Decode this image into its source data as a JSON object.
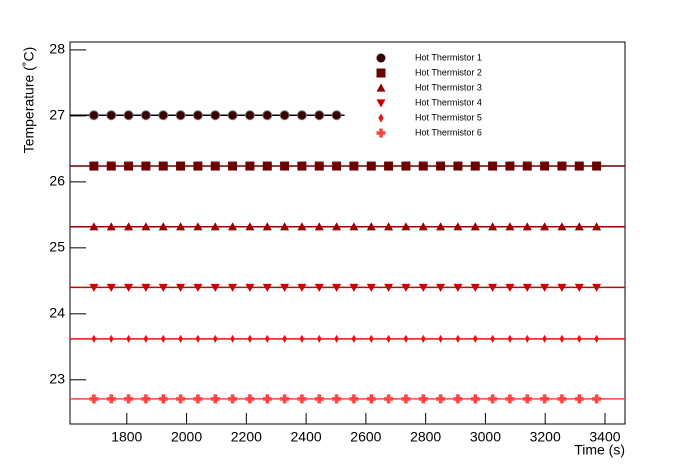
{
  "chart_data": {
    "type": "scatter",
    "x_label": "Time (s)",
    "y_label": "Temperature (˚C)",
    "xlim": [
      1610,
      3467
    ],
    "ylim": [
      22.33,
      28.12
    ],
    "xticks": [
      1800,
      2000,
      2200,
      2400,
      2600,
      2800,
      3000,
      3200,
      3400
    ],
    "yticks": [
      23,
      24,
      25,
      26,
      27,
      28
    ],
    "series": [
      {
        "name": "Hot Thermistor 1",
        "color": "#3a0000",
        "marker": "circle",
        "x": [
          1690,
          1748,
          1806,
          1864,
          1922,
          1980,
          2038,
          2096,
          2154,
          2212,
          2270,
          2328,
          2386,
          2444,
          2502
        ],
        "values": [
          27.01,
          27.01,
          27.01,
          27.01,
          27.01,
          27.01,
          27.01,
          27.01,
          27.01,
          27.01,
          27.01,
          27.01,
          27.01,
          27.01,
          27.01
        ]
      },
      {
        "name": "Hot Thermistor 2",
        "color": "#6b0000",
        "marker": "square",
        "x": [
          1690,
          1748,
          1806,
          1864,
          1922,
          1980,
          2038,
          2096,
          2154,
          2212,
          2270,
          2328,
          2386,
          2444,
          2502,
          2560,
          2618,
          2676,
          2734,
          2792,
          2850,
          2908,
          2966,
          3024,
          3082,
          3140,
          3198,
          3256,
          3314,
          3372
        ],
        "values": [
          26.24,
          26.24,
          26.24,
          26.24,
          26.24,
          26.24,
          26.24,
          26.24,
          26.24,
          26.24,
          26.24,
          26.24,
          26.24,
          26.24,
          26.24,
          26.24,
          26.24,
          26.24,
          26.24,
          26.24,
          26.24,
          26.24,
          26.24,
          26.24,
          26.24,
          26.24,
          26.24,
          26.24,
          26.24,
          26.24
        ]
      },
      {
        "name": "Hot Thermistor 3",
        "color": "#990000",
        "marker": "triangle-up",
        "x": [
          1690,
          1748,
          1806,
          1864,
          1922,
          1980,
          2038,
          2096,
          2154,
          2212,
          2270,
          2328,
          2386,
          2444,
          2502,
          2560,
          2618,
          2676,
          2734,
          2792,
          2850,
          2908,
          2966,
          3024,
          3082,
          3140,
          3198,
          3256,
          3314,
          3372
        ],
        "values": [
          25.32,
          25.32,
          25.32,
          25.32,
          25.32,
          25.32,
          25.32,
          25.32,
          25.32,
          25.32,
          25.32,
          25.32,
          25.32,
          25.32,
          25.32,
          25.32,
          25.32,
          25.32,
          25.32,
          25.32,
          25.32,
          25.32,
          25.32,
          25.32,
          25.32,
          25.32,
          25.32,
          25.32,
          25.32,
          25.32
        ]
      },
      {
        "name": "Hot Thermistor 4",
        "color": "#cc0000",
        "marker": "triangle-down",
        "x": [
          1690,
          1748,
          1806,
          1864,
          1922,
          1980,
          2038,
          2096,
          2154,
          2212,
          2270,
          2328,
          2386,
          2444,
          2502,
          2560,
          2618,
          2676,
          2734,
          2792,
          2850,
          2908,
          2966,
          3024,
          3082,
          3140,
          3198,
          3256,
          3314,
          3372
        ],
        "values": [
          24.4,
          24.4,
          24.4,
          24.4,
          24.4,
          24.4,
          24.4,
          24.4,
          24.4,
          24.4,
          24.4,
          24.4,
          24.4,
          24.4,
          24.4,
          24.4,
          24.4,
          24.4,
          24.4,
          24.4,
          24.4,
          24.4,
          24.4,
          24.4,
          24.4,
          24.4,
          24.4,
          24.4,
          24.4,
          24.4
        ]
      },
      {
        "name": "Hot Thermistor 5",
        "color": "#ee1111",
        "marker": "diamond",
        "x": [
          1690,
          1748,
          1806,
          1864,
          1922,
          1980,
          2038,
          2096,
          2154,
          2212,
          2270,
          2328,
          2386,
          2444,
          2502,
          2560,
          2618,
          2676,
          2734,
          2792,
          2850,
          2908,
          2966,
          3024,
          3082,
          3140,
          3198,
          3256,
          3314,
          3372
        ],
        "values": [
          23.62,
          23.62,
          23.62,
          23.62,
          23.62,
          23.62,
          23.62,
          23.62,
          23.62,
          23.62,
          23.62,
          23.62,
          23.62,
          23.62,
          23.62,
          23.62,
          23.62,
          23.62,
          23.62,
          23.62,
          23.62,
          23.62,
          23.62,
          23.62,
          23.62,
          23.62,
          23.62,
          23.62,
          23.62,
          23.62
        ]
      },
      {
        "name": "Hot Thermistor 6",
        "color": "#ff4444",
        "marker": "cross",
        "x": [
          1690,
          1748,
          1806,
          1864,
          1922,
          1980,
          2038,
          2096,
          2154,
          2212,
          2270,
          2328,
          2386,
          2444,
          2502,
          2560,
          2618,
          2676,
          2734,
          2792,
          2850,
          2908,
          2966,
          3024,
          3082,
          3140,
          3198,
          3256,
          3314,
          3372
        ],
        "values": [
          22.71,
          22.71,
          22.71,
          22.71,
          22.71,
          22.71,
          22.71,
          22.71,
          22.71,
          22.71,
          22.71,
          22.71,
          22.71,
          22.71,
          22.71,
          22.71,
          22.71,
          22.71,
          22.71,
          22.71,
          22.71,
          22.71,
          22.71,
          22.71,
          22.71,
          22.71,
          22.71,
          22.71,
          22.71,
          22.71
        ]
      }
    ]
  }
}
